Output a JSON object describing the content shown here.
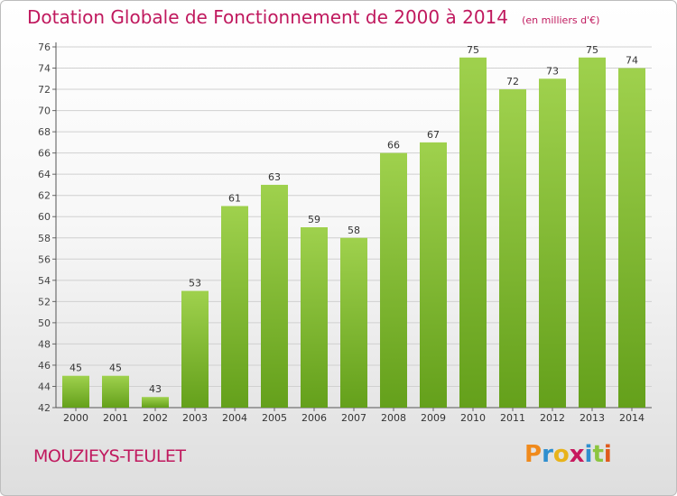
{
  "header": {
    "title": "Dotation Globale de Fonctionnement de 2000 à 2014",
    "subtitle": "(en milliers d'€)"
  },
  "footer": {
    "commune": "MOUZIEYS-TEULET",
    "logo_text": "Proxiti"
  },
  "colors": {
    "title": "#c0195e",
    "bar_top": "#9fd14d",
    "bar_bottom": "#64a01b",
    "grid": "#d0d0d0"
  },
  "chart_data": {
    "type": "bar",
    "title": "Dotation Globale de Fonctionnement de 2000 à 2014",
    "subtitle": "(en milliers d'€)",
    "categories": [
      "2000",
      "2001",
      "2002",
      "2003",
      "2004",
      "2005",
      "2006",
      "2007",
      "2008",
      "2009",
      "2010",
      "2011",
      "2012",
      "2013",
      "2014"
    ],
    "values": [
      45,
      45,
      43,
      53,
      61,
      63,
      59,
      58,
      66,
      67,
      75,
      72,
      73,
      75,
      74
    ],
    "ylim": [
      42,
      76
    ],
    "yticks": [
      42,
      44,
      46,
      48,
      50,
      52,
      54,
      56,
      58,
      60,
      62,
      64,
      66,
      68,
      70,
      72,
      74,
      76
    ],
    "grid": true,
    "legend": "none",
    "xlabel": "",
    "ylabel": ""
  }
}
